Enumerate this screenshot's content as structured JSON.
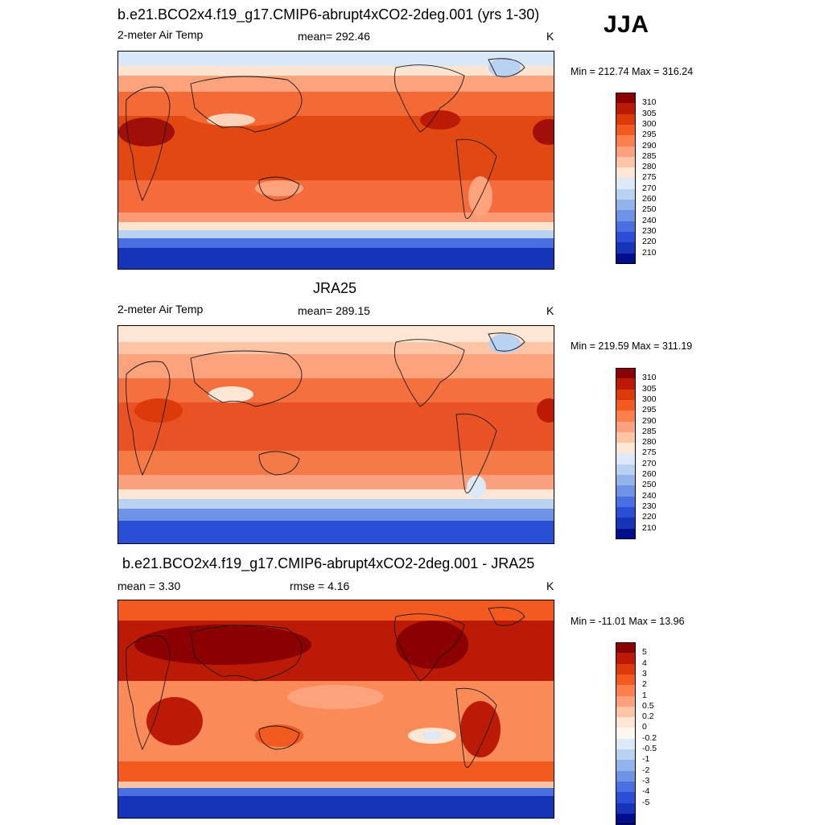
{
  "season": "JJA",
  "panels": [
    {
      "title": "b.e21.BCO2x4.f19_g17.CMIP6-abrupt4xCO2-2deg.001 (yrs 1-30)",
      "left_label": "2-meter Air Temp",
      "center_label": "mean= 292.46",
      "units": "K",
      "minmax": "Min = 212.74 Max = 316.24",
      "colorbar": {
        "colors": [
          "#8b0000",
          "#bb1a06",
          "#dd3a0c",
          "#f25a20",
          "#fc7f4d",
          "#fda07e",
          "#fec4a6",
          "#fde6d3",
          "#dbe9f8",
          "#b9d2f1",
          "#92b3ec",
          "#6e93e6",
          "#4a6fe0",
          "#2a4fd6",
          "#1634b8",
          "#000e8c"
        ],
        "labels": [
          "310",
          "305",
          "300",
          "295",
          "290",
          "285",
          "280",
          "275",
          "270",
          "260",
          "250",
          "240",
          "230",
          "220",
          "210"
        ]
      }
    },
    {
      "title": "JRA25",
      "left_label": "2-meter Air Temp",
      "center_label": "mean= 289.15",
      "units": "K",
      "minmax": "Min = 219.59 Max = 311.19",
      "colorbar": {
        "colors": [
          "#8b0000",
          "#bb1a06",
          "#dd3a0c",
          "#f25a20",
          "#fc7f4d",
          "#fda07e",
          "#fec4a6",
          "#fde6d3",
          "#dbe9f8",
          "#b9d2f1",
          "#92b3ec",
          "#6e93e6",
          "#4a6fe0",
          "#2a4fd6",
          "#1634b8",
          "#000e8c"
        ],
        "labels": [
          "310",
          "305",
          "300",
          "295",
          "290",
          "285",
          "280",
          "275",
          "270",
          "260",
          "250",
          "240",
          "230",
          "220",
          "210"
        ]
      }
    },
    {
      "title": "b.e21.BCO2x4.f19_g17.CMIP6-abrupt4xCO2-2deg.001 - JRA25",
      "left_label": "mean =   3.30",
      "center_label": "rmse =   4.16",
      "units": "K",
      "minmax": "Min = -11.01 Max =  13.96",
      "colorbar": {
        "colors": [
          "#8b0000",
          "#bb1a06",
          "#dd3a0c",
          "#f25a20",
          "#fc7f4d",
          "#fda07e",
          "#fec4a6",
          "#fde6d3",
          "#fef7f0",
          "#dbe9f8",
          "#b9d2f1",
          "#92b3ec",
          "#6e93e6",
          "#4a6fe0",
          "#2a4fd6",
          "#1634b8",
          "#000e8c"
        ],
        "labels": [
          "5",
          "4",
          "3",
          "2",
          "1",
          "0.5",
          "0.2",
          "0",
          "-0.2",
          "-0.5",
          "-1",
          "-2",
          "-3",
          "-4",
          "-5"
        ]
      }
    }
  ]
}
